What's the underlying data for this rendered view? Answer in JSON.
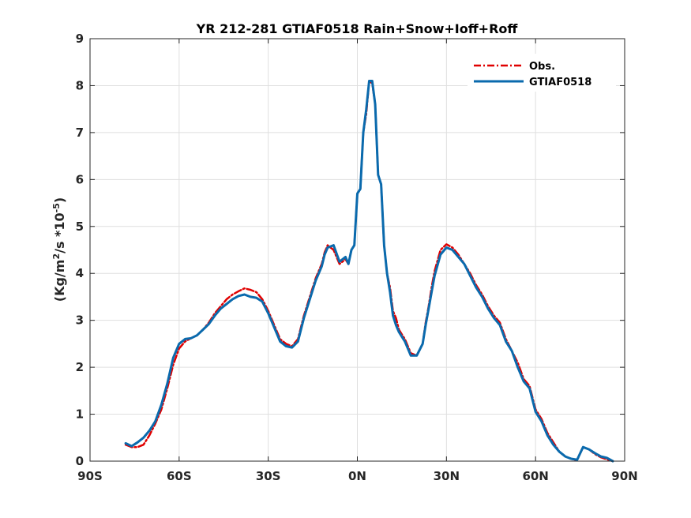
{
  "chart_data": {
    "type": "line",
    "title": "YR 212-281 GTIAF0518  Rain+Snow+Ioff+Roff",
    "ylabel": "(Kg/m^2/s *10^-5)",
    "xlim": [
      -90,
      90
    ],
    "ylim": [
      0,
      9
    ],
    "xticks": [
      -90,
      -60,
      -30,
      0,
      30,
      60,
      90
    ],
    "xtick_labels": [
      "90S",
      "60S",
      "30S",
      "0N",
      "30N",
      "60N",
      "90N"
    ],
    "yticks": [
      0,
      1,
      2,
      3,
      4,
      5,
      6,
      7,
      8,
      9
    ],
    "ytick_labels": [
      "0",
      "1",
      "2",
      "3",
      "4",
      "5",
      "6",
      "7",
      "8",
      "9"
    ],
    "grid": true,
    "legend_position": "top-right",
    "series": [
      {
        "name": "Obs.",
        "color": "#e00000",
        "dash": "dash-dot",
        "x": [
          -78,
          -76,
          -74,
          -72,
          -70,
          -68,
          -66,
          -64,
          -62,
          -60,
          -58,
          -56,
          -54,
          -52,
          -50,
          -48,
          -46,
          -44,
          -42,
          -40,
          -38,
          -36,
          -34,
          -32,
          -30,
          -28,
          -26,
          -24,
          -22,
          -20,
          -18,
          -16,
          -14,
          -12,
          -11,
          -10,
          -8,
          -6,
          -4,
          -3,
          -2,
          -1,
          0,
          1,
          2,
          3,
          4,
          5,
          6,
          7,
          8,
          9,
          10,
          11,
          12,
          13,
          14,
          15,
          16,
          18,
          20,
          22,
          23,
          24,
          25,
          26,
          28,
          30,
          32,
          34,
          36,
          38,
          40,
          42,
          44,
          46,
          48,
          50,
          52,
          54,
          56,
          58,
          60,
          62,
          64,
          66,
          68,
          70,
          72,
          74,
          76,
          78,
          80,
          82,
          84,
          86
        ],
        "y": [
          0.35,
          0.3,
          0.3,
          0.35,
          0.55,
          0.8,
          1.1,
          1.55,
          2.05,
          2.4,
          2.55,
          2.62,
          2.68,
          2.8,
          2.95,
          3.15,
          3.3,
          3.45,
          3.55,
          3.62,
          3.68,
          3.65,
          3.6,
          3.45,
          3.2,
          2.9,
          2.6,
          2.5,
          2.45,
          2.6,
          3.1,
          3.5,
          3.9,
          4.2,
          4.45,
          4.6,
          4.5,
          4.2,
          4.3,
          4.2,
          4.5,
          4.6,
          5.7,
          5.8,
          7.0,
          7.4,
          8.1,
          8.05,
          7.6,
          6.1,
          5.9,
          4.6,
          4.0,
          3.7,
          3.2,
          3.05,
          2.8,
          2.7,
          2.6,
          2.3,
          2.25,
          2.5,
          2.95,
          3.3,
          3.7,
          4.05,
          4.5,
          4.62,
          4.55,
          4.4,
          4.2,
          4.0,
          3.75,
          3.55,
          3.3,
          3.1,
          2.95,
          2.6,
          2.35,
          2.1,
          1.75,
          1.6,
          1.1,
          0.9,
          0.6,
          0.4,
          0.2,
          0.1,
          0.05,
          0.02,
          0.3,
          0.25,
          0.15,
          0.08,
          0.04,
          0.0
        ]
      },
      {
        "name": "GTIAF0518",
        "color": "#0a6aad",
        "dash": "solid",
        "x": [
          -78,
          -76,
          -74,
          -72,
          -70,
          -68,
          -66,
          -64,
          -62,
          -60,
          -58,
          -56,
          -54,
          -52,
          -50,
          -48,
          -46,
          -44,
          -42,
          -40,
          -38,
          -36,
          -34,
          -32,
          -30,
          -28,
          -26,
          -24,
          -22,
          -20,
          -18,
          -16,
          -14,
          -12,
          -11,
          -10,
          -8,
          -6,
          -4,
          -3,
          -2,
          -1,
          0,
          1,
          2,
          3,
          4,
          5,
          6,
          7,
          8,
          9,
          10,
          11,
          12,
          13,
          14,
          15,
          16,
          18,
          20,
          22,
          23,
          24,
          25,
          26,
          28,
          30,
          32,
          34,
          36,
          38,
          40,
          42,
          44,
          46,
          48,
          50,
          52,
          54,
          56,
          58,
          60,
          62,
          64,
          66,
          68,
          70,
          72,
          74,
          76,
          78,
          80,
          82,
          84,
          86
        ],
        "y": [
          0.38,
          0.32,
          0.4,
          0.5,
          0.65,
          0.85,
          1.2,
          1.65,
          2.2,
          2.5,
          2.6,
          2.62,
          2.68,
          2.8,
          2.92,
          3.1,
          3.25,
          3.35,
          3.45,
          3.52,
          3.55,
          3.5,
          3.48,
          3.4,
          3.15,
          2.85,
          2.55,
          2.45,
          2.42,
          2.55,
          3.05,
          3.45,
          3.85,
          4.15,
          4.4,
          4.55,
          4.6,
          4.25,
          4.35,
          4.2,
          4.5,
          4.6,
          5.7,
          5.8,
          7.0,
          7.5,
          8.1,
          8.1,
          7.6,
          6.1,
          5.9,
          4.6,
          4.0,
          3.6,
          3.1,
          2.9,
          2.75,
          2.65,
          2.55,
          2.25,
          2.25,
          2.5,
          2.9,
          3.25,
          3.6,
          3.95,
          4.4,
          4.55,
          4.5,
          4.35,
          4.2,
          3.95,
          3.7,
          3.5,
          3.25,
          3.05,
          2.9,
          2.55,
          2.35,
          2.0,
          1.7,
          1.55,
          1.05,
          0.85,
          0.55,
          0.35,
          0.2,
          0.1,
          0.05,
          0.03,
          0.3,
          0.25,
          0.17,
          0.1,
          0.07,
          0.0
        ]
      }
    ]
  }
}
